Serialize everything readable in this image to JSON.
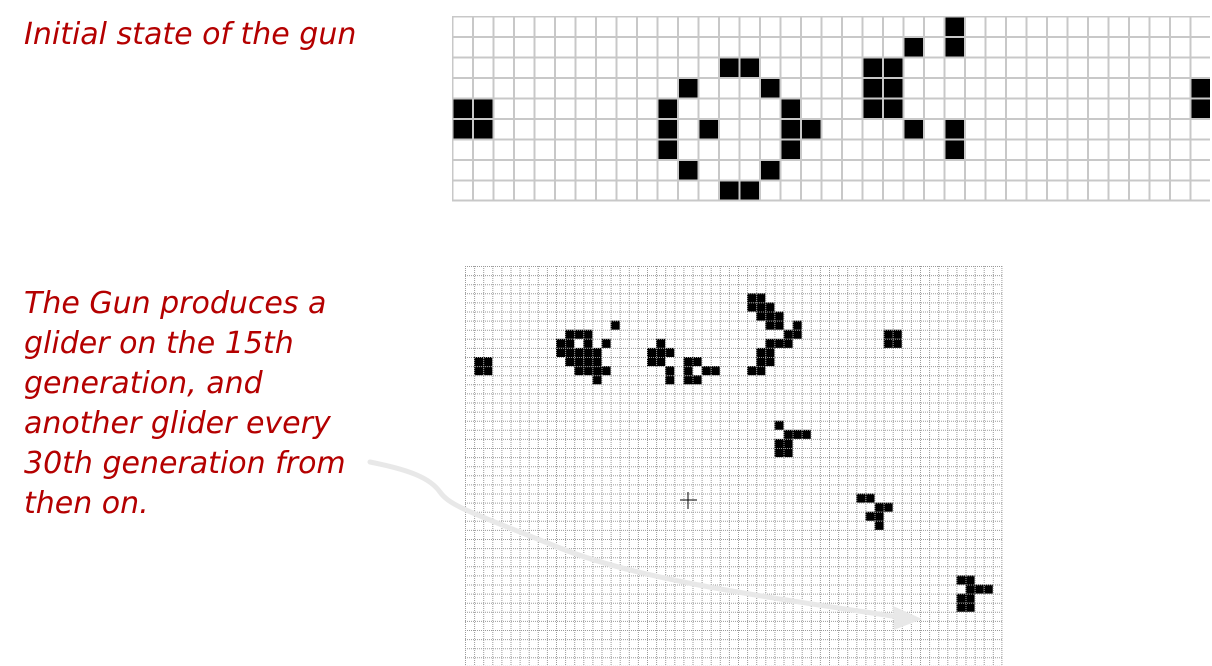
{
  "captions": {
    "initial_state": "Initial state of the gun",
    "description": "The Gun produces a\nglider on the 15th\ngeneration, and\nanother glider every\n30th generation from\nthen on."
  },
  "colors": {
    "caption": "#b40000",
    "cell_alive": "#000000",
    "grid_line_top": "#c8c8c8",
    "grid_line_bottom": "#9a9a9a",
    "arrow": "#e8e8e8"
  },
  "initial_grid": {
    "cols": 38,
    "rows": 9,
    "live_cells": [
      [
        0,
        4
      ],
      [
        1,
        4
      ],
      [
        0,
        5
      ],
      [
        1,
        5
      ],
      [
        13,
        2
      ],
      [
        14,
        2
      ],
      [
        11,
        3
      ],
      [
        10,
        4
      ],
      [
        10,
        5
      ],
      [
        10,
        6
      ],
      [
        11,
        7
      ],
      [
        13,
        8
      ],
      [
        14,
        8
      ],
      [
        12,
        5
      ],
      [
        15,
        3
      ],
      [
        15,
        7
      ],
      [
        16,
        4
      ],
      [
        16,
        5
      ],
      [
        16,
        6
      ],
      [
        17,
        5
      ],
      [
        20,
        2
      ],
      [
        21,
        2
      ],
      [
        20,
        3
      ],
      [
        21,
        3
      ],
      [
        20,
        4
      ],
      [
        21,
        4
      ],
      [
        22,
        1
      ],
      [
        22,
        5
      ],
      [
        24,
        0
      ],
      [
        24,
        1
      ],
      [
        24,
        5
      ],
      [
        24,
        6
      ],
      [
        36,
        3
      ],
      [
        37,
        3
      ],
      [
        36,
        4
      ],
      [
        37,
        4
      ]
    ]
  },
  "generation_grid": {
    "cols": 59,
    "rows": 44,
    "live_cells": [
      [
        1,
        10
      ],
      [
        2,
        10
      ],
      [
        1,
        11
      ],
      [
        2,
        11
      ],
      [
        16,
        6
      ],
      [
        11,
        7
      ],
      [
        12,
        7
      ],
      [
        13,
        7
      ],
      [
        10,
        8
      ],
      [
        11,
        8
      ],
      [
        13,
        8
      ],
      [
        15,
        8
      ],
      [
        10,
        9
      ],
      [
        11,
        9
      ],
      [
        12,
        9
      ],
      [
        13,
        9
      ],
      [
        14,
        9
      ],
      [
        11,
        10
      ],
      [
        12,
        10
      ],
      [
        13,
        10
      ],
      [
        14,
        10
      ],
      [
        12,
        11
      ],
      [
        13,
        11
      ],
      [
        14,
        11
      ],
      [
        15,
        11
      ],
      [
        14,
        12
      ],
      [
        21,
        8
      ],
      [
        20,
        9
      ],
      [
        21,
        9
      ],
      [
        22,
        9
      ],
      [
        20,
        10
      ],
      [
        21,
        10
      ],
      [
        24,
        10
      ],
      [
        25,
        10
      ],
      [
        22,
        11
      ],
      [
        24,
        11
      ],
      [
        26,
        11
      ],
      [
        27,
        11
      ],
      [
        22,
        12
      ],
      [
        24,
        12
      ],
      [
        25,
        12
      ],
      [
        31,
        3
      ],
      [
        32,
        3
      ],
      [
        31,
        4
      ],
      [
        32,
        4
      ],
      [
        33,
        4
      ],
      [
        32,
        5
      ],
      [
        33,
        5
      ],
      [
        34,
        5
      ],
      [
        33,
        6
      ],
      [
        34,
        6
      ],
      [
        36,
        6
      ],
      [
        35,
        7
      ],
      [
        36,
        7
      ],
      [
        33,
        8
      ],
      [
        34,
        8
      ],
      [
        35,
        8
      ],
      [
        32,
        9
      ],
      [
        33,
        9
      ],
      [
        32,
        10
      ],
      [
        33,
        10
      ],
      [
        31,
        11
      ],
      [
        32,
        11
      ],
      [
        46,
        7
      ],
      [
        47,
        7
      ],
      [
        46,
        8
      ],
      [
        47,
        8
      ],
      [
        34,
        17
      ],
      [
        35,
        18
      ],
      [
        36,
        18
      ],
      [
        37,
        18
      ],
      [
        34,
        19
      ],
      [
        35,
        19
      ],
      [
        34,
        20
      ],
      [
        35,
        20
      ],
      [
        43,
        25
      ],
      [
        44,
        25
      ],
      [
        45,
        26
      ],
      [
        46,
        26
      ],
      [
        44,
        27
      ],
      [
        45,
        27
      ],
      [
        45,
        28
      ],
      [
        54,
        34
      ],
      [
        55,
        34
      ],
      [
        55,
        35
      ],
      [
        56,
        35
      ],
      [
        57,
        35
      ],
      [
        54,
        36
      ],
      [
        55,
        36
      ],
      [
        54,
        37
      ],
      [
        55,
        37
      ]
    ]
  }
}
